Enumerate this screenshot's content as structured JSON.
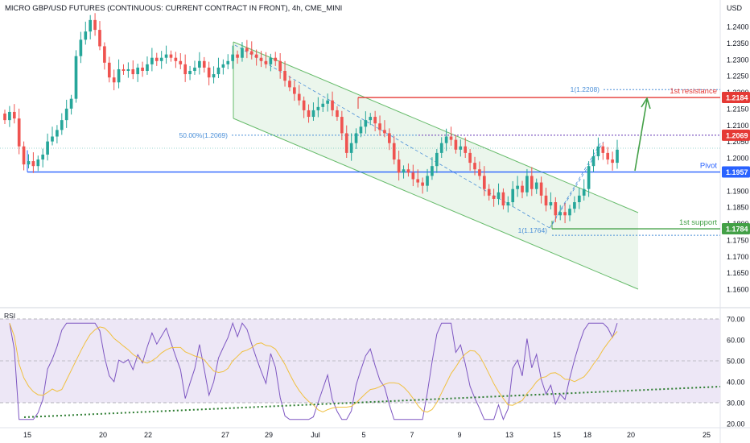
{
  "header": {
    "title": "MICRO GBP/USD FUTURES (CONTINUOUS: CURRENT CONTRACT IN FRONT), 4h, CME_MINI",
    "currency": "USD"
  },
  "colors": {
    "up": "#26a69a",
    "down": "#ef5350",
    "pivot": "#2962ff",
    "resistance": "#e53935",
    "support": "#43a047",
    "channel": "#66bb6a",
    "fib": "#4a8fd8",
    "rsi_line": "#7e57c2",
    "rsi_ma": "#f0c040",
    "rsi_band": "#ede7f6"
  },
  "chart_data": [
    {
      "type": "candlestick",
      "title": "MICRO GBP/USD FUTURES (CONTINUOUS: CURRENT CONTRACT IN FRONT), 4h, CME_MINI",
      "ylim": [
        1.155,
        1.247
      ],
      "y_ticks": [
        "1.2400",
        "1.2350",
        "1.2300",
        "1.2250",
        "1.2200",
        "1.2150",
        "1.2100",
        "1.2050",
        "1.2000",
        "1.1950",
        "1.1900",
        "1.1850",
        "1.1800",
        "1.1750",
        "1.1700",
        "1.1650",
        "1.1600"
      ],
      "x_ticks": [
        "15",
        "20",
        "22",
        "27",
        "29",
        "Jul",
        "5",
        "7",
        "9",
        "13",
        "15",
        "18",
        "20",
        "25"
      ],
      "close": [
        1.2115,
        1.214,
        1.212,
        1.2035,
        1.198,
        1.199,
        1.1975,
        1.1995,
        1.201,
        1.205,
        1.2065,
        1.2085,
        1.2115,
        1.215,
        1.218,
        1.231,
        1.236,
        1.2385,
        1.242,
        1.239,
        1.234,
        1.229,
        1.2245,
        1.223,
        1.227,
        1.2265,
        1.227,
        1.2255,
        1.2275,
        1.2265,
        1.2285,
        1.2305,
        1.2295,
        1.2305,
        1.2315,
        1.2305,
        1.2295,
        1.2285,
        1.2255,
        1.2265,
        1.2275,
        1.2295,
        1.2275,
        1.2245,
        1.2255,
        1.2275,
        1.2285,
        1.2295,
        1.2315,
        1.2305,
        1.2335,
        1.2325,
        1.2315,
        1.2305,
        1.2295,
        1.2285,
        1.2305,
        1.2295,
        1.2265,
        1.2235,
        1.2215,
        1.2195,
        1.2175,
        1.2145,
        1.2125,
        1.2145,
        1.2155,
        1.2165,
        1.2175,
        1.2145,
        1.2125,
        1.2075,
        1.2015,
        1.2045,
        1.2075,
        1.2095,
        1.2115,
        1.2125,
        1.2105,
        1.2085,
        1.2075,
        1.2045,
        1.1995,
        1.1955,
        1.1965,
        1.1955,
        1.1935,
        1.1925,
        1.1915,
        1.1945,
        1.1975,
        1.2015,
        1.2045,
        1.2065,
        1.2055,
        1.2025,
        1.2035,
        1.2015,
        1.1985,
        1.1965,
        1.1945,
        1.1905,
        1.1885,
        1.1875,
        1.1895,
        1.1855,
        1.1865,
        1.1905,
        1.1915,
        1.1895,
        1.1945,
        1.1905,
        1.1925,
        1.1885,
        1.1855,
        1.1865,
        1.1825,
        1.1835,
        1.1825,
        1.1845,
        1.1865,
        1.1885,
        1.1905,
        1.1975,
        1.2005,
        1.2035,
        1.2015,
        1.1995,
        1.1985,
        1.2025
      ],
      "pivot": "1.1957",
      "first_resistance": "1.2184",
      "first_support": "1.1784",
      "fib_50": "1.2069",
      "fib_1_upper": "1.2208",
      "fib_1_lower": "1.1764"
    },
    {
      "type": "line",
      "title": "RSI",
      "ylim": [
        17,
        72
      ],
      "y_ticks": [
        "70.00",
        "60.00",
        "50.00",
        "40.00",
        "30.00",
        "20.00"
      ],
      "band": [
        30,
        70
      ],
      "mid": 50
    }
  ],
  "labels": {
    "pivot": "Pivot",
    "first_resistance": "1st resistance",
    "first_support": "1st support",
    "fib_50": "50.00%(1.2069)",
    "fib_1_upper": "1(1.2208)",
    "fib_1_lower": "1(1.1764)",
    "price_tag_1": "1.2184",
    "price_tag_2": "1.2069",
    "price_tag_3": "1.1957",
    "price_tag_4": "1.1784",
    "rsi_title": "RSI"
  }
}
